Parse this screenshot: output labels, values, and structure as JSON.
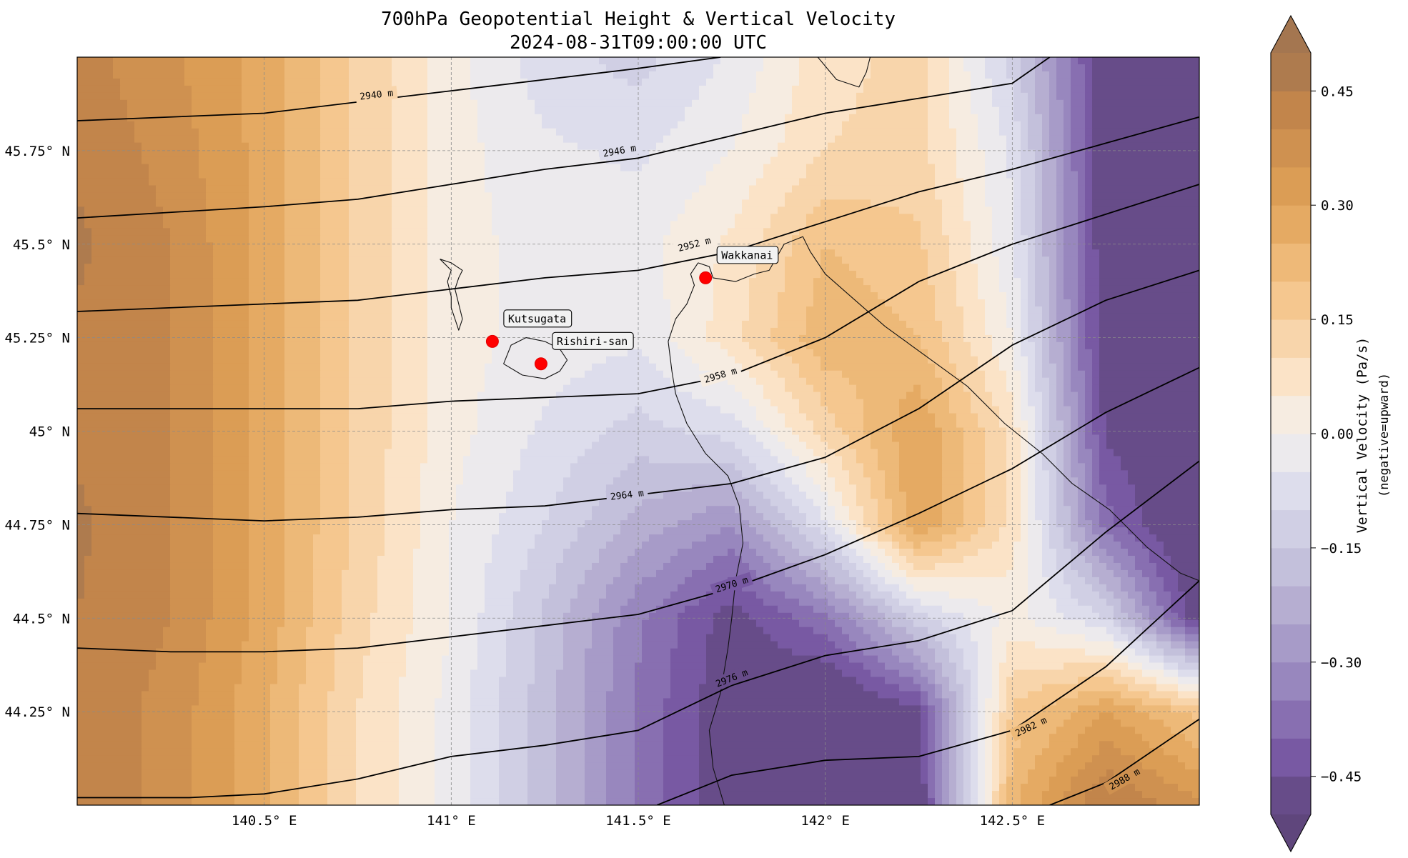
{
  "title": {
    "line1": "700hPa Geopotential Height & Vertical Velocity",
    "line2": "2024-08-31T09:00:00 UTC"
  },
  "map": {
    "lon_range": [
      140.0,
      143.0
    ],
    "lat_range": [
      44.0,
      46.0
    ],
    "x_ticks": [
      {
        "value": 140.5,
        "label": "140.5° E"
      },
      {
        "value": 141.0,
        "label": "141° E"
      },
      {
        "value": 141.5,
        "label": "141.5° E"
      },
      {
        "value": 142.0,
        "label": "142° E"
      },
      {
        "value": 142.5,
        "label": "142.5° E"
      }
    ],
    "y_ticks": [
      {
        "value": 45.75,
        "label": "45.75° N"
      },
      {
        "value": 45.5,
        "label": "45.5° N"
      },
      {
        "value": 45.25,
        "label": "45.25° N"
      },
      {
        "value": 45.0,
        "label": "45° N"
      },
      {
        "value": 44.75,
        "label": "44.75° N"
      },
      {
        "value": 44.5,
        "label": "44.5° N"
      },
      {
        "value": 44.25,
        "label": "44.25° N"
      }
    ],
    "gridlines": true
  },
  "colorbar": {
    "label_line1": "Vertical Velocity (Pa/s)",
    "label_line2": "(negative=upward)",
    "range": [
      -0.5,
      0.5
    ],
    "extend": "both",
    "ticks": [
      {
        "value": 0.45,
        "label": "0.45"
      },
      {
        "value": 0.3,
        "label": "0.30"
      },
      {
        "value": 0.15,
        "label": "0.15"
      },
      {
        "value": 0.0,
        "label": "0.00"
      },
      {
        "value": -0.15,
        "label": "−0.15"
      },
      {
        "value": -0.3,
        "label": "−0.30"
      },
      {
        "value": -0.45,
        "label": "−0.45"
      }
    ],
    "colors": {
      "max": "#a47650",
      "high": "#c4864b",
      "mid_high": "#e1a358",
      "low_pos": "#f5c68c",
      "light_pos": "#fbe2c4",
      "zero": "#f3f1ee",
      "light_neg": "#dcdcec",
      "low_neg": "#bdb8d6",
      "mid_neg": "#9a89bf",
      "strong_neg": "#7a5aa6",
      "min": "#5f467c"
    }
  },
  "field_grid": {
    "lons": [
      140.0,
      140.25,
      140.5,
      140.75,
      141.0,
      141.25,
      141.5,
      141.75,
      142.0,
      142.25,
      142.5,
      142.75,
      143.0
    ],
    "lats": [
      46.0,
      45.75,
      45.5,
      45.25,
      45.0,
      44.75,
      44.5,
      44.25,
      44.0
    ],
    "values": [
      [
        0.42,
        0.36,
        0.28,
        0.14,
        0.02,
        -0.08,
        -0.12,
        -0.04,
        0.08,
        0.12,
        -0.12,
        -0.5,
        -0.55
      ],
      [
        0.44,
        0.38,
        0.28,
        0.14,
        0.02,
        -0.04,
        -0.06,
        0.0,
        0.1,
        0.12,
        -0.06,
        -0.5,
        -0.55
      ],
      [
        0.46,
        0.4,
        0.28,
        0.14,
        0.02,
        -0.02,
        -0.02,
        0.06,
        0.2,
        0.16,
        -0.04,
        -0.5,
        -0.55
      ],
      [
        0.44,
        0.4,
        0.28,
        0.14,
        0.02,
        -0.02,
        -0.04,
        0.08,
        0.24,
        0.2,
        0.0,
        -0.5,
        -0.55
      ],
      [
        0.44,
        0.4,
        0.28,
        0.14,
        0.02,
        -0.06,
        -0.12,
        -0.08,
        0.12,
        0.3,
        0.08,
        -0.46,
        -0.55
      ],
      [
        0.46,
        0.4,
        0.28,
        0.14,
        0.0,
        -0.1,
        -0.22,
        -0.3,
        -0.06,
        0.3,
        0.08,
        -0.38,
        -0.55
      ],
      [
        0.45,
        0.4,
        0.28,
        0.12,
        0.0,
        -0.16,
        -0.34,
        -0.48,
        -0.36,
        -0.12,
        0.02,
        -0.1,
        -0.5
      ],
      [
        0.44,
        0.38,
        0.26,
        0.1,
        -0.02,
        -0.18,
        -0.36,
        -0.5,
        -0.56,
        -0.46,
        0.16,
        0.3,
        0.18
      ],
      [
        0.44,
        0.38,
        0.26,
        0.1,
        -0.02,
        -0.18,
        -0.36,
        -0.5,
        -0.56,
        -0.5,
        0.24,
        0.46,
        0.36
      ]
    ]
  },
  "height_contours": [
    {
      "label": "2940 m",
      "label_at": [
        140.8,
        45.9
      ],
      "points": [
        [
          140.0,
          45.83
        ],
        [
          140.5,
          45.85
        ],
        [
          141.0,
          45.91
        ],
        [
          141.5,
          45.97
        ],
        [
          141.72,
          46.0
        ]
      ]
    },
    {
      "label": "2946 m",
      "label_at": [
        141.45,
        45.75
      ],
      "points": [
        [
          140.0,
          45.57
        ],
        [
          140.5,
          45.6
        ],
        [
          140.75,
          45.62
        ],
        [
          141.0,
          45.66
        ],
        [
          141.25,
          45.7
        ],
        [
          141.5,
          45.73
        ],
        [
          141.75,
          45.79
        ],
        [
          142.0,
          45.85
        ],
        [
          142.25,
          45.89
        ],
        [
          142.5,
          45.93
        ],
        [
          142.6,
          46.0
        ]
      ]
    },
    {
      "label": "2952 m",
      "label_at": [
        141.65,
        45.5
      ],
      "points": [
        [
          140.0,
          45.32
        ],
        [
          140.5,
          45.34
        ],
        [
          140.75,
          45.35
        ],
        [
          141.0,
          45.38
        ],
        [
          141.25,
          45.41
        ],
        [
          141.5,
          45.43
        ],
        [
          141.75,
          45.48
        ],
        [
          142.0,
          45.56
        ],
        [
          142.25,
          45.64
        ],
        [
          142.5,
          45.7
        ],
        [
          142.75,
          45.77
        ],
        [
          143.0,
          45.84
        ]
      ]
    },
    {
      "label": "2958 m",
      "label_at": [
        141.72,
        45.15
      ],
      "points": [
        [
          140.0,
          45.06
        ],
        [
          140.25,
          45.06
        ],
        [
          140.5,
          45.06
        ],
        [
          140.75,
          45.06
        ],
        [
          141.0,
          45.08
        ],
        [
          141.25,
          45.09
        ],
        [
          141.5,
          45.1
        ],
        [
          141.75,
          45.15
        ],
        [
          142.0,
          45.25
        ],
        [
          142.25,
          45.4
        ],
        [
          142.5,
          45.5
        ],
        [
          142.75,
          45.58
        ],
        [
          143.0,
          45.66
        ]
      ]
    },
    {
      "label": "2964 m",
      "label_at": [
        141.47,
        44.83
      ],
      "points": [
        [
          140.0,
          44.78
        ],
        [
          140.5,
          44.76
        ],
        [
          140.75,
          44.77
        ],
        [
          141.0,
          44.79
        ],
        [
          141.25,
          44.8
        ],
        [
          141.5,
          44.83
        ],
        [
          141.75,
          44.86
        ],
        [
          142.0,
          44.93
        ],
        [
          142.25,
          45.06
        ],
        [
          142.5,
          45.23
        ],
        [
          142.75,
          45.35
        ],
        [
          143.0,
          45.43
        ]
      ]
    },
    {
      "label": "2970 m",
      "label_at": [
        141.75,
        44.59
      ],
      "points": [
        [
          140.0,
          44.42
        ],
        [
          140.25,
          44.41
        ],
        [
          140.5,
          44.41
        ],
        [
          140.75,
          44.42
        ],
        [
          141.0,
          44.45
        ],
        [
          141.25,
          44.48
        ],
        [
          141.5,
          44.51
        ],
        [
          141.75,
          44.58
        ],
        [
          142.0,
          44.67
        ],
        [
          142.25,
          44.78
        ],
        [
          142.5,
          44.9
        ],
        [
          142.75,
          45.05
        ],
        [
          143.0,
          45.17
        ]
      ]
    },
    {
      "label": "2976 m",
      "label_at": [
        141.75,
        44.34
      ],
      "points": [
        [
          140.0,
          44.02
        ],
        [
          140.3,
          44.02
        ],
        [
          140.5,
          44.03
        ],
        [
          140.75,
          44.07
        ],
        [
          141.0,
          44.13
        ],
        [
          141.25,
          44.16
        ],
        [
          141.5,
          44.2
        ],
        [
          141.75,
          44.32
        ],
        [
          142.0,
          44.4
        ],
        [
          142.25,
          44.44
        ],
        [
          142.5,
          44.52
        ],
        [
          142.75,
          44.73
        ],
        [
          143.0,
          44.92
        ]
      ]
    },
    {
      "label": "2982 m",
      "label_at": [
        142.55,
        44.21
      ],
      "points": [
        [
          141.55,
          44.0
        ],
        [
          141.75,
          44.08
        ],
        [
          142.0,
          44.12
        ],
        [
          142.25,
          44.13
        ],
        [
          142.5,
          44.2
        ],
        [
          142.75,
          44.37
        ],
        [
          143.0,
          44.6
        ]
      ]
    },
    {
      "label": "2988 m",
      "label_at": [
        142.8,
        44.07
      ],
      "points": [
        [
          142.6,
          44.0
        ],
        [
          142.75,
          44.06
        ],
        [
          143.0,
          44.23
        ]
      ]
    }
  ],
  "coastlines": [
    {
      "name": "rebun",
      "points": [
        [
          140.97,
          45.46
        ],
        [
          141.0,
          45.45
        ],
        [
          141.03,
          45.43
        ],
        [
          141.02,
          45.41
        ],
        [
          141.01,
          45.38
        ],
        [
          141.02,
          45.34
        ],
        [
          141.03,
          45.3
        ],
        [
          141.02,
          45.27
        ],
        [
          141.01,
          45.3
        ],
        [
          141.0,
          45.33
        ],
        [
          141.0,
          45.36
        ],
        [
          140.99,
          45.4
        ],
        [
          141.0,
          45.43
        ],
        [
          140.97,
          45.46
        ]
      ]
    },
    {
      "name": "rishiri",
      "points": [
        [
          141.14,
          45.18
        ],
        [
          141.16,
          45.23
        ],
        [
          141.2,
          45.25
        ],
        [
          141.25,
          45.24
        ],
        [
          141.29,
          45.22
        ],
        [
          141.31,
          45.19
        ],
        [
          141.29,
          45.16
        ],
        [
          141.25,
          45.14
        ],
        [
          141.19,
          45.15
        ],
        [
          141.14,
          45.18
        ]
      ]
    },
    {
      "name": "hokkaido-west",
      "points": [
        [
          141.66,
          45.45
        ],
        [
          141.64,
          45.42
        ],
        [
          141.65,
          45.39
        ],
        [
          141.63,
          45.34
        ],
        [
          141.6,
          45.3
        ],
        [
          141.58,
          45.24
        ],
        [
          141.59,
          45.16
        ],
        [
          141.6,
          45.1
        ],
        [
          141.63,
          45.02
        ],
        [
          141.68,
          44.94
        ],
        [
          141.74,
          44.88
        ],
        [
          141.77,
          44.8
        ],
        [
          141.78,
          44.7
        ],
        [
          141.76,
          44.6
        ],
        [
          141.75,
          44.5
        ],
        [
          141.74,
          44.42
        ],
        [
          141.72,
          44.3
        ],
        [
          141.69,
          44.2
        ],
        [
          141.7,
          44.1
        ],
        [
          141.73,
          44.0
        ]
      ]
    },
    {
      "name": "hokkaido-north",
      "points": [
        [
          141.66,
          45.45
        ],
        [
          141.69,
          45.44
        ],
        [
          141.7,
          45.41
        ],
        [
          141.76,
          45.4
        ],
        [
          141.81,
          45.42
        ],
        [
          141.85,
          45.43
        ],
        [
          141.89,
          45.5
        ],
        [
          141.94,
          45.52
        ],
        [
          141.96,
          45.48
        ],
        [
          142.0,
          45.42
        ],
        [
          142.08,
          45.35
        ],
        [
          142.16,
          45.28
        ],
        [
          142.27,
          45.2
        ],
        [
          142.38,
          45.12
        ],
        [
          142.48,
          45.02
        ],
        [
          142.58,
          44.94
        ],
        [
          142.66,
          44.86
        ],
        [
          142.76,
          44.79
        ],
        [
          142.86,
          44.69
        ],
        [
          142.95,
          44.62
        ],
        [
          143.0,
          44.6
        ]
      ]
    },
    {
      "name": "sakhalin",
      "points": [
        [
          141.98,
          46.0
        ],
        [
          142.03,
          45.94
        ],
        [
          142.09,
          45.92
        ],
        [
          142.11,
          45.96
        ],
        [
          142.12,
          46.0
        ]
      ]
    }
  ],
  "stations": [
    {
      "name": "Wakkanai",
      "lon": 141.68,
      "lat": 45.41
    },
    {
      "name": "Kutsugata",
      "lon": 141.11,
      "lat": 45.24
    },
    {
      "name": "Rishiri-san",
      "lon": 141.24,
      "lat": 45.18
    }
  ]
}
